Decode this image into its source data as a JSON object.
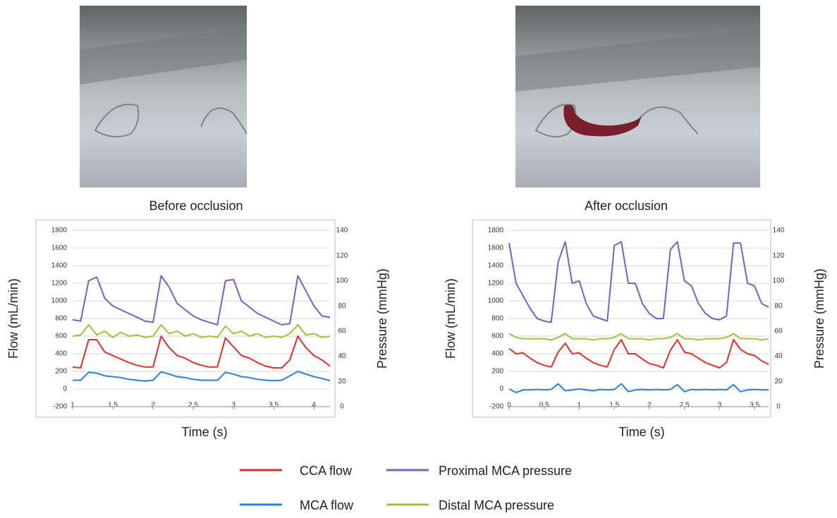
{
  "images": [
    {
      "caption": "Before occlusion"
    },
    {
      "caption": "After occlusion"
    }
  ],
  "legend": [
    {
      "name": "CCA flow",
      "color": "#d9302c"
    },
    {
      "name": "Proximal MCA pressure",
      "color": "#7b5fbf"
    },
    {
      "name": "MCA flow",
      "color": "#2e7fd6"
    },
    {
      "name": "Distal MCA pressure",
      "color": "#9bc43c"
    }
  ],
  "chart_data": [
    {
      "type": "line",
      "xlabel": "Time (s)",
      "ylabel": "Flow (mL/min)",
      "y2label": "Pressure (mmHg)",
      "grid": true,
      "xlim": [
        1,
        4.2
      ],
      "xticks": [
        1,
        1.5,
        2,
        2.5,
        3,
        3.5,
        4
      ],
      "ylim": [
        -200,
        1800
      ],
      "yticks": [
        -200,
        0,
        200,
        400,
        600,
        800,
        1000,
        1200,
        1400,
        1600,
        1800
      ],
      "y2lim": [
        0,
        140
      ],
      "y2ticks": [
        0,
        20,
        40,
        60,
        80,
        100,
        120,
        140
      ],
      "x": [
        1.0,
        1.1,
        1.2,
        1.3,
        1.4,
        1.5,
        1.6,
        1.7,
        1.8,
        1.9,
        2.0,
        2.1,
        2.2,
        2.3,
        2.4,
        2.5,
        2.6,
        2.7,
        2.8,
        2.9,
        3.0,
        3.1,
        3.2,
        3.3,
        3.4,
        3.5,
        3.6,
        3.7,
        3.8,
        3.9,
        4.0,
        4.1,
        4.2
      ],
      "series": [
        {
          "color": "#d9302c",
          "values": [
            250,
            240,
            560,
            560,
            420,
            380,
            340,
            300,
            270,
            250,
            250,
            600,
            470,
            380,
            350,
            300,
            270,
            250,
            250,
            580,
            480,
            380,
            350,
            300,
            260,
            240,
            240,
            330,
            600,
            470,
            380,
            330,
            260
          ]
        },
        {
          "color": "#7b5fbf",
          "axis": "y2",
          "values": [
            69,
            68,
            100,
            103,
            86,
            80,
            77,
            74,
            71,
            68,
            67,
            104,
            95,
            82,
            77,
            72,
            69,
            67,
            65,
            100,
            101,
            84,
            79,
            74,
            71,
            68,
            65,
            66,
            104,
            92,
            80,
            72,
            71
          ]
        },
        {
          "color": "#2e7fd6",
          "values": [
            100,
            100,
            190,
            180,
            150,
            140,
            130,
            110,
            100,
            90,
            100,
            195,
            170,
            140,
            130,
            110,
            100,
            100,
            100,
            190,
            170,
            140,
            130,
            110,
            100,
            95,
            100,
            150,
            200,
            170,
            140,
            120,
            95
          ]
        },
        {
          "color": "#9bc43c",
          "axis": "y2",
          "values": [
            56,
            57,
            65,
            57,
            60,
            55,
            59,
            56,
            57,
            55,
            56,
            65,
            58,
            60,
            56,
            58,
            55,
            56,
            55,
            64,
            58,
            60,
            56,
            58,
            55,
            56,
            55,
            58,
            65,
            57,
            58,
            55,
            56
          ]
        }
      ]
    },
    {
      "type": "line",
      "xlabel": "Time (s)",
      "ylabel": "Flow (mL/min)",
      "y2label": "Pressure (mmHg)",
      "grid": true,
      "xlim": [
        0,
        3.7
      ],
      "xticks": [
        0,
        0.5,
        1,
        1.5,
        2,
        2.5,
        3,
        3.5
      ],
      "ylim": [
        -200,
        1800
      ],
      "yticks": [
        -200,
        0,
        200,
        400,
        600,
        800,
        1000,
        1200,
        1400,
        1600,
        1800
      ],
      "y2lim": [
        0,
        140
      ],
      "y2ticks": [
        0,
        20,
        40,
        60,
        80,
        100,
        120,
        140
      ],
      "x": [
        0.0,
        0.1,
        0.2,
        0.3,
        0.4,
        0.5,
        0.6,
        0.7,
        0.8,
        0.9,
        1.0,
        1.1,
        1.2,
        1.3,
        1.4,
        1.5,
        1.6,
        1.7,
        1.8,
        1.9,
        2.0,
        2.1,
        2.2,
        2.3,
        2.4,
        2.5,
        2.6,
        2.7,
        2.8,
        2.9,
        3.0,
        3.1,
        3.2,
        3.3,
        3.4,
        3.5,
        3.6,
        3.7
      ],
      "series": [
        {
          "color": "#d9302c",
          "values": [
            460,
            400,
            410,
            350,
            300,
            270,
            250,
            420,
            520,
            400,
            410,
            350,
            300,
            270,
            250,
            450,
            560,
            400,
            400,
            340,
            290,
            270,
            240,
            440,
            560,
            420,
            400,
            350,
            300,
            270,
            240,
            300,
            560,
            450,
            400,
            380,
            320,
            280
          ]
        },
        {
          "color": "#7b5fbf",
          "axis": "y2",
          "values": [
            130,
            98,
            88,
            78,
            70,
            68,
            67,
            115,
            131,
            98,
            100,
            82,
            72,
            70,
            68,
            128,
            131,
            98,
            98,
            82,
            74,
            70,
            70,
            125,
            131,
            100,
            96,
            82,
            74,
            70,
            69,
            72,
            130,
            130,
            98,
            96,
            82,
            79
          ]
        },
        {
          "color": "#2e7fd6",
          "values": [
            0,
            -40,
            -10,
            -10,
            -5,
            -10,
            -5,
            60,
            -20,
            -10,
            0,
            -10,
            -20,
            -5,
            -10,
            -5,
            60,
            -30,
            -10,
            -5,
            -10,
            -5,
            -10,
            -5,
            50,
            -30,
            -5,
            -10,
            -5,
            -10,
            -5,
            -10,
            50,
            -30,
            -10,
            -5,
            -10,
            -10
          ]
        },
        {
          "color": "#9bc43c",
          "axis": "y2",
          "values": [
            58,
            55,
            54,
            54,
            54,
            54,
            53,
            55,
            58,
            54,
            54,
            54,
            53,
            54,
            54,
            55,
            58,
            54,
            54,
            54,
            53,
            54,
            54,
            55,
            58,
            54,
            54,
            53,
            54,
            54,
            54,
            55,
            58,
            54,
            54,
            54,
            53,
            54
          ]
        }
      ]
    }
  ]
}
